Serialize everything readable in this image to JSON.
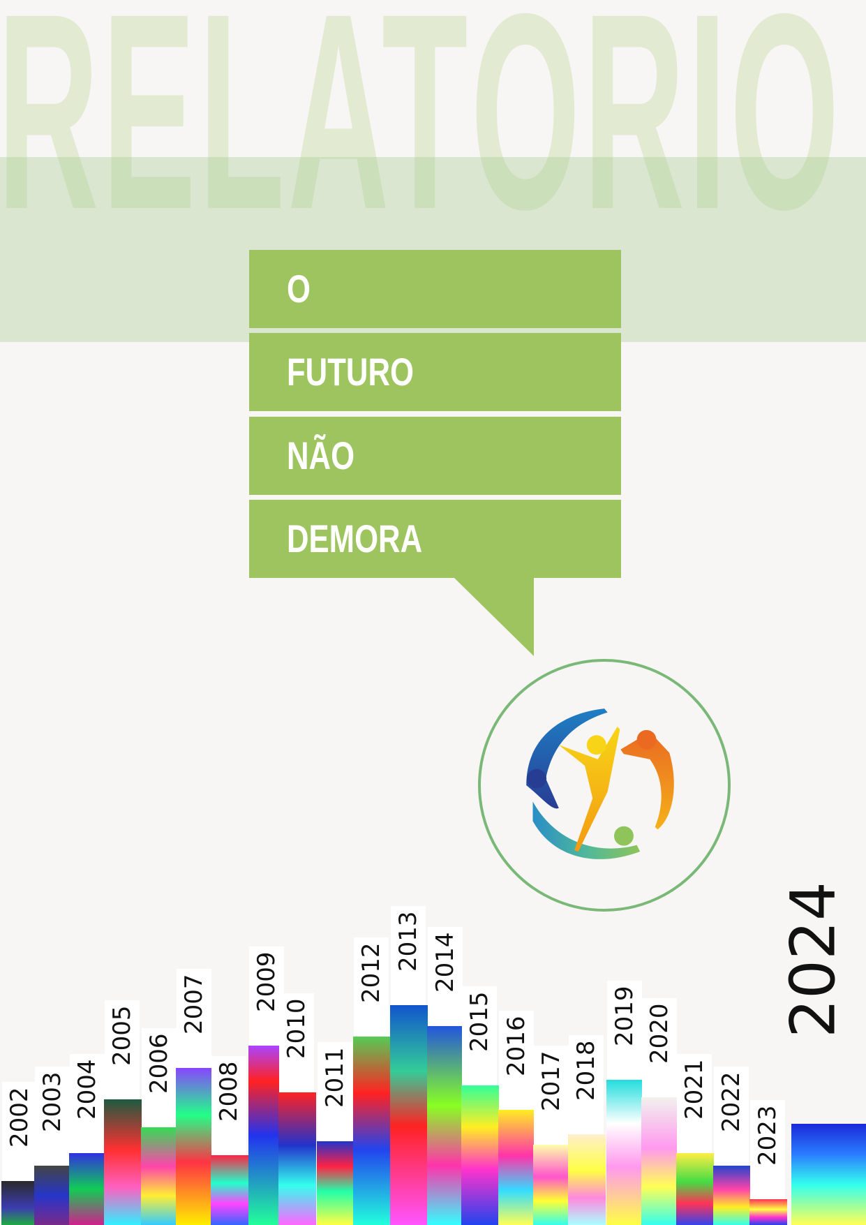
{
  "cover": {
    "background_word": "RELATÓRIO",
    "headline_lines": [
      "O",
      "FUTURO",
      "NÃO",
      "DEMORA"
    ],
    "logo": "people-circle-logo",
    "years": [
      "2002",
      "2003",
      "2004",
      "2005",
      "2006",
      "2007",
      "2008",
      "2009",
      "2010",
      "2011",
      "2012",
      "2013",
      "2014",
      "2015",
      "2016",
      "2017",
      "2018",
      "2019",
      "2020",
      "2021",
      "2022",
      "2023"
    ],
    "current_year": "2024",
    "colors": {
      "accent_green": "#9dc45f",
      "ring_green": "#7ab878",
      "background": "#f8f6f4"
    }
  }
}
